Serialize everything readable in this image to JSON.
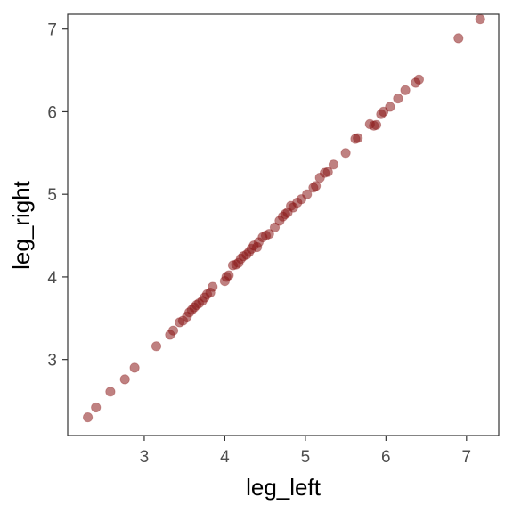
{
  "chart_data": {
    "type": "scatter",
    "xlabel": "leg_left",
    "ylabel": "leg_right",
    "xlim": [
      2.05,
      7.4
    ],
    "ylim": [
      2.08,
      7.18
    ],
    "x_ticks": [
      3,
      4,
      5,
      6,
      7
    ],
    "y_ticks": [
      3,
      4,
      5,
      6,
      7
    ],
    "grid": false,
    "legend": "none",
    "point_color": "#8b1a1a",
    "points": [
      [
        2.3,
        2.3
      ],
      [
        2.4,
        2.42
      ],
      [
        2.58,
        2.61
      ],
      [
        2.76,
        2.76
      ],
      [
        2.88,
        2.9
      ],
      [
        3.15,
        3.16
      ],
      [
        3.32,
        3.3
      ],
      [
        3.36,
        3.35
      ],
      [
        3.44,
        3.45
      ],
      [
        3.48,
        3.47
      ],
      [
        3.53,
        3.52
      ],
      [
        3.56,
        3.57
      ],
      [
        3.59,
        3.6
      ],
      [
        3.62,
        3.63
      ],
      [
        3.65,
        3.66
      ],
      [
        3.68,
        3.68
      ],
      [
        3.72,
        3.71
      ],
      [
        3.75,
        3.75
      ],
      [
        3.78,
        3.79
      ],
      [
        3.82,
        3.81
      ],
      [
        3.85,
        3.88
      ],
      [
        4.0,
        3.95
      ],
      [
        4.02,
        4.0
      ],
      [
        4.05,
        4.02
      ],
      [
        4.1,
        4.14
      ],
      [
        4.14,
        4.15
      ],
      [
        4.17,
        4.17
      ],
      [
        4.2,
        4.22
      ],
      [
        4.23,
        4.25
      ],
      [
        4.27,
        4.27
      ],
      [
        4.3,
        4.3
      ],
      [
        4.33,
        4.34
      ],
      [
        4.36,
        4.38
      ],
      [
        4.4,
        4.36
      ],
      [
        4.42,
        4.42
      ],
      [
        4.47,
        4.48
      ],
      [
        4.51,
        4.5
      ],
      [
        4.55,
        4.52
      ],
      [
        4.62,
        4.6
      ],
      [
        4.68,
        4.68
      ],
      [
        4.72,
        4.73
      ],
      [
        4.75,
        4.76
      ],
      [
        4.78,
        4.78
      ],
      [
        4.82,
        4.86
      ],
      [
        4.85,
        4.84
      ],
      [
        4.9,
        4.9
      ],
      [
        4.95,
        4.94
      ],
      [
        5.02,
        5.0
      ],
      [
        5.1,
        5.08
      ],
      [
        5.13,
        5.1
      ],
      [
        5.18,
        5.2
      ],
      [
        5.24,
        5.26
      ],
      [
        5.28,
        5.27
      ],
      [
        5.35,
        5.36
      ],
      [
        5.5,
        5.5
      ],
      [
        5.62,
        5.67
      ],
      [
        5.65,
        5.68
      ],
      [
        5.8,
        5.85
      ],
      [
        5.85,
        5.83
      ],
      [
        5.88,
        5.84
      ],
      [
        5.94,
        5.97
      ],
      [
        5.97,
        6.0
      ],
      [
        6.05,
        6.06
      ],
      [
        6.15,
        6.16
      ],
      [
        6.24,
        6.26
      ],
      [
        6.37,
        6.35
      ],
      [
        6.41,
        6.39
      ],
      [
        6.9,
        6.89
      ],
      [
        7.17,
        7.12
      ]
    ]
  }
}
